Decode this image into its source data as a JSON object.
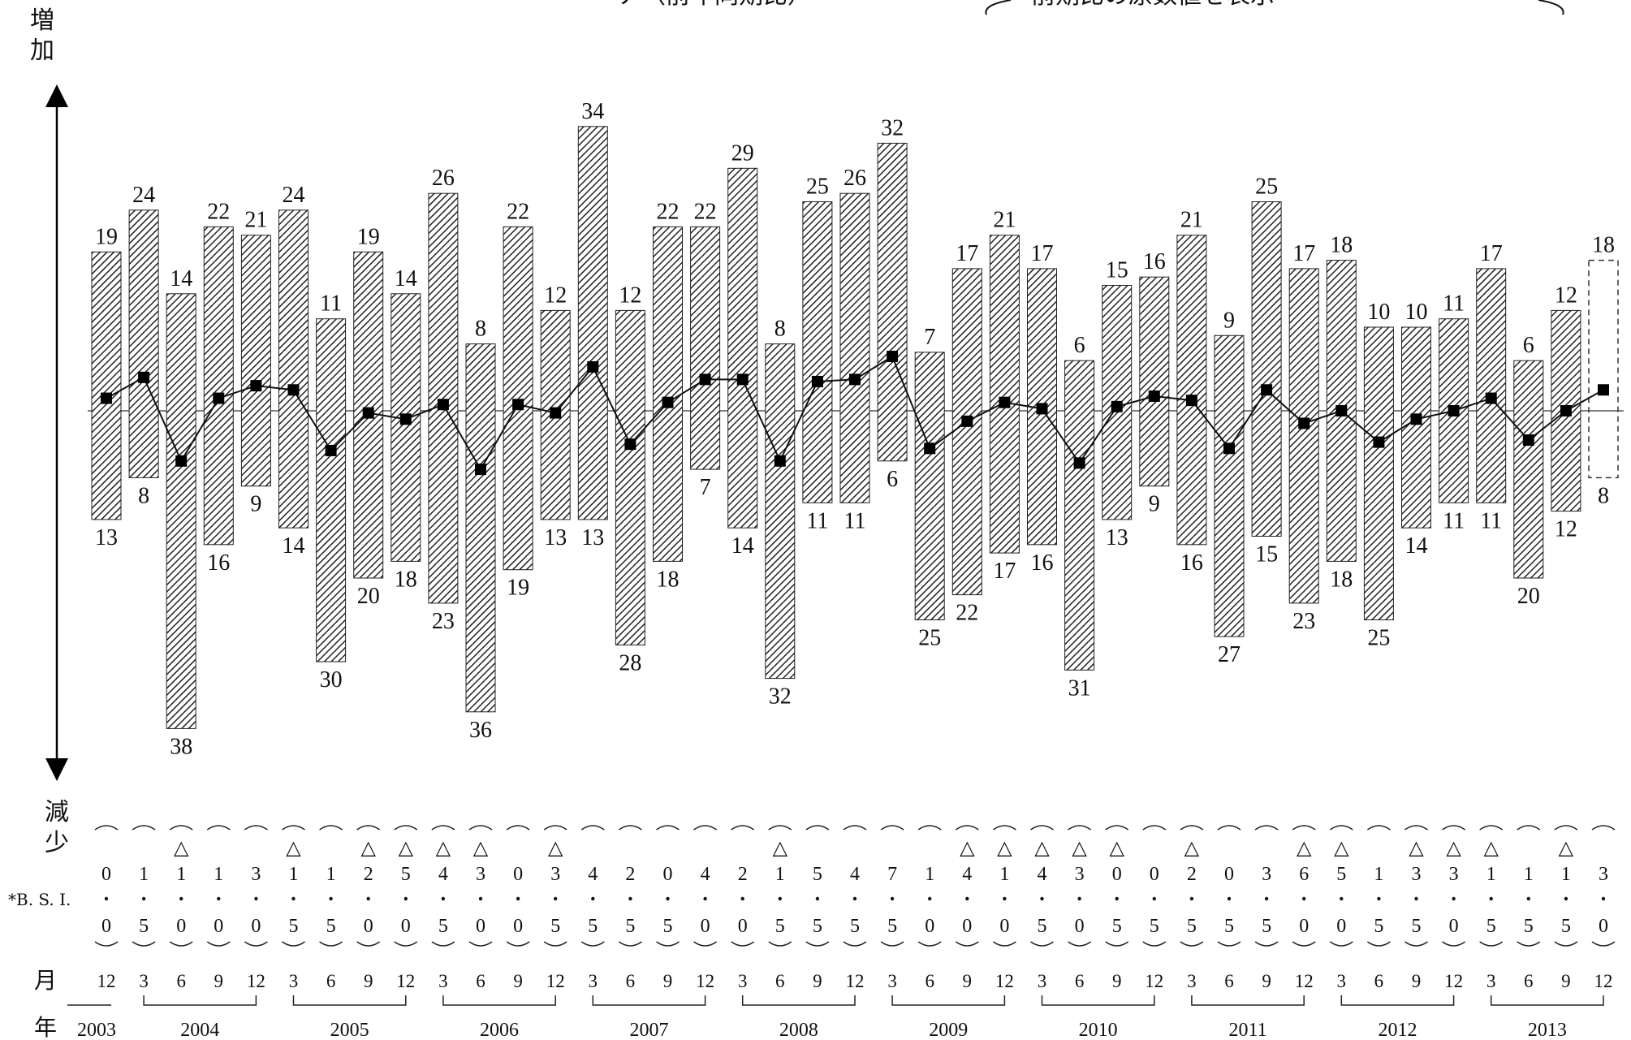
{
  "page": {
    "top_title_fragment": "ア（前年同期比）",
    "top_note_fragment": "前期比の原数値を表示"
  },
  "labels": {
    "increase": "増加",
    "decrease": "減少",
    "bsi": "*B. S. I.",
    "month": "月",
    "year": "年"
  },
  "colors": {
    "bar_hatch": "#222222",
    "line": "#111111",
    "marker": "#000000",
    "text": "#111111"
  },
  "chart_data": {
    "type": "bar",
    "subtype": "diverging-bars-with-line",
    "periods": [
      {
        "year": "2003",
        "month": "12",
        "up": 19,
        "down": 13,
        "bsi": "0.0",
        "bsi_sign": ""
      },
      {
        "year": "2004",
        "month": "3",
        "up": 24,
        "down": 8,
        "bsi": "1.5",
        "bsi_sign": ""
      },
      {
        "year": "2004",
        "month": "6",
        "up": 14,
        "down": 38,
        "bsi": "1.0",
        "bsi_sign": "△"
      },
      {
        "year": "2004",
        "month": "9",
        "up": 22,
        "down": 16,
        "bsi": "1.0",
        "bsi_sign": ""
      },
      {
        "year": "2004",
        "month": "12",
        "up": 21,
        "down": 9,
        "bsi": "3.0",
        "bsi_sign": ""
      },
      {
        "year": "2005",
        "month": "3",
        "up": 24,
        "down": 14,
        "bsi": "1.5",
        "bsi_sign": "△"
      },
      {
        "year": "2005",
        "month": "6",
        "up": 11,
        "down": 30,
        "bsi": "1.5",
        "bsi_sign": ""
      },
      {
        "year": "2005",
        "month": "9",
        "up": 19,
        "down": 20,
        "bsi": "2.0",
        "bsi_sign": "△"
      },
      {
        "year": "2005",
        "month": "12",
        "up": 14,
        "down": 18,
        "bsi": "5.0",
        "bsi_sign": "△"
      },
      {
        "year": "2006",
        "month": "3",
        "up": 26,
        "down": 23,
        "bsi": "4.5",
        "bsi_sign": "△"
      },
      {
        "year": "2006",
        "month": "6",
        "up": 8,
        "down": 36,
        "bsi": "3.0",
        "bsi_sign": "△"
      },
      {
        "year": "2006",
        "month": "9",
        "up": 22,
        "down": 19,
        "bsi": "0.0",
        "bsi_sign": ""
      },
      {
        "year": "2006",
        "month": "12",
        "up": 12,
        "down": 13,
        "bsi": "3.5",
        "bsi_sign": "△"
      },
      {
        "year": "2007",
        "month": "3",
        "up": 34,
        "down": 13,
        "bsi": "4.5",
        "bsi_sign": ""
      },
      {
        "year": "2007",
        "month": "6",
        "up": 12,
        "down": 28,
        "bsi": "2.5",
        "bsi_sign": ""
      },
      {
        "year": "2007",
        "month": "9",
        "up": 22,
        "down": 18,
        "bsi": "0.5",
        "bsi_sign": ""
      },
      {
        "year": "2007",
        "month": "12",
        "up": 22,
        "down": 7,
        "bsi": "4.0",
        "bsi_sign": ""
      },
      {
        "year": "2008",
        "month": "3",
        "up": 29,
        "down": 14,
        "bsi": "2.0",
        "bsi_sign": ""
      },
      {
        "year": "2008",
        "month": "6",
        "up": 8,
        "down": 32,
        "bsi": "1.5",
        "bsi_sign": "△"
      },
      {
        "year": "2008",
        "month": "9",
        "up": 25,
        "down": 11,
        "bsi": "5.5",
        "bsi_sign": ""
      },
      {
        "year": "2008",
        "month": "12",
        "up": 26,
        "down": 11,
        "bsi": "4.5",
        "bsi_sign": ""
      },
      {
        "year": "2009",
        "month": "3",
        "up": 32,
        "down": 6,
        "bsi": "7.5",
        "bsi_sign": ""
      },
      {
        "year": "2009",
        "month": "6",
        "up": 7,
        "down": 25,
        "bsi": "1.0",
        "bsi_sign": ""
      },
      {
        "year": "2009",
        "month": "9",
        "up": 17,
        "down": 22,
        "bsi": "4.0",
        "bsi_sign": "△"
      },
      {
        "year": "2009",
        "month": "12",
        "up": 21,
        "down": 17,
        "bsi": "1.0",
        "bsi_sign": "△"
      },
      {
        "year": "2010",
        "month": "3",
        "up": 17,
        "down": 16,
        "bsi": "4.5",
        "bsi_sign": "△"
      },
      {
        "year": "2010",
        "month": "6",
        "up": 6,
        "down": 31,
        "bsi": "3.0",
        "bsi_sign": "△"
      },
      {
        "year": "2010",
        "month": "9",
        "up": 15,
        "down": 13,
        "bsi": "0.5",
        "bsi_sign": "△"
      },
      {
        "year": "2010",
        "month": "12",
        "up": 16,
        "down": 9,
        "bsi": "0.5",
        "bsi_sign": ""
      },
      {
        "year": "2011",
        "month": "3",
        "up": 21,
        "down": 16,
        "bsi": "2.5",
        "bsi_sign": "△"
      },
      {
        "year": "2011",
        "month": "6",
        "up": 9,
        "down": 27,
        "bsi": "0.5",
        "bsi_sign": ""
      },
      {
        "year": "2011",
        "month": "9",
        "up": 25,
        "down": 15,
        "bsi": "3.5",
        "bsi_sign": ""
      },
      {
        "year": "2011",
        "month": "12",
        "up": 17,
        "down": 23,
        "bsi": "6.0",
        "bsi_sign": "△"
      },
      {
        "year": "2012",
        "month": "3",
        "up": 18,
        "down": 18,
        "bsi": "5.0",
        "bsi_sign": "△"
      },
      {
        "year": "2012",
        "month": "6",
        "up": 10,
        "down": 25,
        "bsi": "1.5",
        "bsi_sign": ""
      },
      {
        "year": "2012",
        "month": "9",
        "up": 10,
        "down": 14,
        "bsi": "3.5",
        "bsi_sign": "△"
      },
      {
        "year": "2012",
        "month": "12",
        "up": 11,
        "down": 11,
        "bsi": "3.0",
        "bsi_sign": "△"
      },
      {
        "year": "2013",
        "month": "3",
        "up": 17,
        "down": 11,
        "bsi": "1.5",
        "bsi_sign": "△"
      },
      {
        "year": "2013",
        "month": "6",
        "up": 6,
        "down": 20,
        "bsi": "1.5",
        "bsi_sign": ""
      },
      {
        "year": "2013",
        "month": "9",
        "up": 12,
        "down": 12,
        "bsi": "1.5",
        "bsi_sign": "△"
      },
      {
        "year": "2013",
        "month": "12",
        "up": 18,
        "down": 8,
        "bsi": "3.0",
        "bsi_sign": "",
        "forecast": true
      }
    ],
    "year_groups": [
      {
        "year": "2003",
        "months": 1
      },
      {
        "year": "2004",
        "months": 4
      },
      {
        "year": "2005",
        "months": 4
      },
      {
        "year": "2006",
        "months": 4
      },
      {
        "year": "2007",
        "months": 4
      },
      {
        "year": "2008",
        "months": 4
      },
      {
        "year": "2009",
        "months": 4
      },
      {
        "year": "2010",
        "months": 4
      },
      {
        "year": "2011",
        "months": 4
      },
      {
        "year": "2012",
        "months": 4
      },
      {
        "year": "2013",
        "months": 4
      }
    ],
    "ylim": [
      -40,
      36
    ],
    "grid": false,
    "legend": "none"
  }
}
